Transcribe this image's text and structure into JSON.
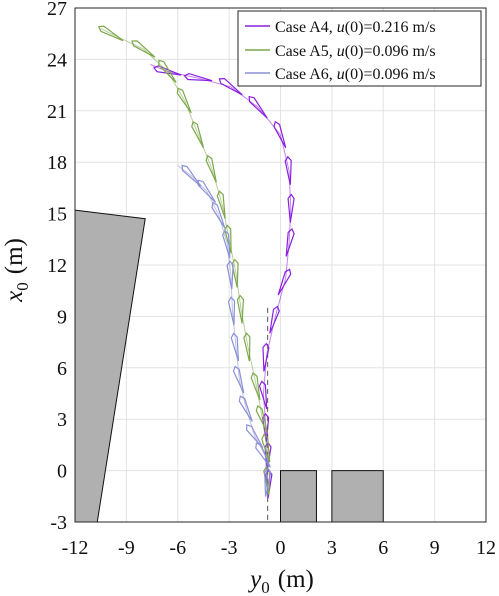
{
  "chart_data": {
    "type": "line",
    "xlabel": {
      "base": "y",
      "sub": "0",
      "unit": "(m)"
    },
    "ylabel": {
      "base": "x",
      "sub": "0",
      "unit": "(m)"
    },
    "xlim": [
      -12,
      12
    ],
    "ylim": [
      -3,
      27
    ],
    "xticks": [
      "-12",
      "-9",
      "-6",
      "-3",
      "0",
      "3",
      "6",
      "9",
      "12"
    ],
    "yticks": [
      "-3",
      "0",
      "3",
      "6",
      "9",
      "12",
      "15",
      "18",
      "21",
      "24",
      "27"
    ],
    "grid": true,
    "legend_position": "top-right",
    "legend": [
      {
        "text_before": "Case A4,  ",
        "var": "u",
        "text_after": "(0)=0.216 m/s",
        "color": "#8b1fe0"
      },
      {
        "text_before": "Case A5,  ",
        "var": "u",
        "text_after": "(0)=0.096 m/s",
        "color": "#7ca84a"
      },
      {
        "text_before": "Case A6,  ",
        "var": "u",
        "text_after": "(0)=0.096 m/s",
        "color": "#8a90d6"
      }
    ],
    "series": [
      {
        "color": "#8b1fe0",
        "frames": [
          {
            "y": -0.7,
            "x": -0.8,
            "deg": 88
          },
          {
            "y": -0.75,
            "x": 0.8,
            "deg": 88
          },
          {
            "y": -0.85,
            "x": 2.5,
            "deg": 92
          },
          {
            "y": -0.95,
            "x": 4.4,
            "deg": 100
          },
          {
            "y": -0.9,
            "x": 6.6,
            "deg": 85
          },
          {
            "y": -0.4,
            "x": 8.8,
            "deg": 74
          },
          {
            "y": 0.2,
            "x": 11.0,
            "deg": 66
          },
          {
            "y": 0.5,
            "x": 13.3,
            "deg": 78
          },
          {
            "y": 0.6,
            "x": 15.3,
            "deg": 88
          },
          {
            "y": 0.5,
            "x": 17.5,
            "deg": 95
          },
          {
            "y": 0.0,
            "x": 19.6,
            "deg": 112
          },
          {
            "y": -1.3,
            "x": 21.2,
            "deg": 130
          },
          {
            "y": -2.9,
            "x": 22.4,
            "deg": 145
          },
          {
            "y": -4.8,
            "x": 22.9,
            "deg": 170
          },
          {
            "y": -6.6,
            "x": 23.3,
            "deg": 165
          }
        ],
        "path": [
          [
            -0.75,
            -1.5
          ],
          [
            -0.75,
            0.5
          ],
          [
            -0.85,
            2.5
          ],
          [
            -1.0,
            4.5
          ],
          [
            -0.8,
            6.8
          ],
          [
            -0.3,
            9.0
          ],
          [
            0.3,
            11.2
          ],
          [
            0.5,
            13.3
          ],
          [
            0.6,
            15.3
          ],
          [
            0.5,
            17.5
          ],
          [
            0.0,
            19.6
          ],
          [
            -1.3,
            21.2
          ],
          [
            -2.9,
            22.4
          ],
          [
            -4.8,
            22.9
          ],
          [
            -6.6,
            23.3
          ],
          [
            -7.6,
            23.7
          ]
        ]
      },
      {
        "color": "#7ca84a",
        "frames": [
          {
            "y": -0.75,
            "x": -0.6,
            "deg": 95
          },
          {
            "y": -0.8,
            "x": 1.3,
            "deg": 102
          },
          {
            "y": -1.05,
            "x": 3.0,
            "deg": 110
          },
          {
            "y": -1.4,
            "x": 4.9,
            "deg": 104
          },
          {
            "y": -1.9,
            "x": 7.2,
            "deg": 96
          },
          {
            "y": -2.3,
            "x": 9.4,
            "deg": 94
          },
          {
            "y": -2.6,
            "x": 11.5,
            "deg": 95
          },
          {
            "y": -3.0,
            "x": 13.5,
            "deg": 98
          },
          {
            "y": -3.4,
            "x": 15.5,
            "deg": 102
          },
          {
            "y": -4.0,
            "x": 17.6,
            "deg": 108
          },
          {
            "y": -4.8,
            "x": 19.6,
            "deg": 112
          },
          {
            "y": -5.6,
            "x": 21.6,
            "deg": 118
          },
          {
            "y": -6.6,
            "x": 23.3,
            "deg": 128
          },
          {
            "y": -8.0,
            "x": 24.6,
            "deg": 145
          },
          {
            "y": -9.9,
            "x": 25.5,
            "deg": 150
          }
        ],
        "path": [
          [
            -0.75,
            -1.5
          ],
          [
            -0.8,
            1.3
          ],
          [
            -1.05,
            3.0
          ],
          [
            -1.4,
            4.9
          ],
          [
            -1.9,
            7.2
          ],
          [
            -2.3,
            9.4
          ],
          [
            -2.6,
            11.5
          ],
          [
            -3.0,
            13.5
          ],
          [
            -3.4,
            15.5
          ],
          [
            -4.0,
            17.6
          ],
          [
            -4.8,
            19.6
          ],
          [
            -5.6,
            21.6
          ],
          [
            -6.6,
            23.3
          ],
          [
            -8.0,
            24.6
          ],
          [
            -9.9,
            25.5
          ],
          [
            -10.5,
            25.8
          ]
        ]
      },
      {
        "color": "#8a90d6",
        "frames": [
          {
            "y": -0.8,
            "x": -0.7,
            "deg": 85
          },
          {
            "y": -1.0,
            "x": 0.9,
            "deg": 120
          },
          {
            "y": -1.5,
            "x": 2.0,
            "deg": 125
          },
          {
            "y": -2.0,
            "x": 3.6,
            "deg": 115
          },
          {
            "y": -2.4,
            "x": 5.3,
            "deg": 108
          },
          {
            "y": -2.6,
            "x": 7.2,
            "deg": 100
          },
          {
            "y": -2.8,
            "x": 9.3,
            "deg": 96
          },
          {
            "y": -2.9,
            "x": 11.4,
            "deg": 94
          },
          {
            "y": -3.1,
            "x": 13.2,
            "deg": 100
          },
          {
            "y": -3.6,
            "x": 14.9,
            "deg": 115
          },
          {
            "y": -4.3,
            "x": 16.3,
            "deg": 128
          },
          {
            "y": -5.2,
            "x": 17.2,
            "deg": 132
          }
        ],
        "path": [
          [
            -0.75,
            -1.4
          ],
          [
            -0.9,
            0.9
          ],
          [
            -1.5,
            2.0
          ],
          [
            -2.0,
            3.6
          ],
          [
            -2.4,
            5.3
          ],
          [
            -2.6,
            7.2
          ],
          [
            -2.8,
            9.3
          ],
          [
            -2.9,
            11.4
          ],
          [
            -3.1,
            13.2
          ],
          [
            -3.6,
            14.9
          ],
          [
            -4.3,
            16.3
          ],
          [
            -5.2,
            17.2
          ],
          [
            -6.0,
            17.8
          ]
        ]
      }
    ],
    "obstacles": [
      {
        "color": "#b0b0b0",
        "points": [
          [
            -12,
            15.2
          ],
          [
            -7.9,
            14.7
          ],
          [
            -10.7,
            -3
          ],
          [
            -12,
            -3
          ]
        ]
      },
      {
        "color": "#b0b0b0",
        "points": [
          [
            0,
            0
          ],
          [
            2.1,
            0
          ],
          [
            2.1,
            -3
          ],
          [
            0,
            -3
          ]
        ]
      },
      {
        "color": "#b0b0b0",
        "points": [
          [
            3.0,
            0
          ],
          [
            6.0,
            0
          ],
          [
            6.0,
            -3
          ],
          [
            3.0,
            -3
          ]
        ]
      }
    ],
    "reference_line": {
      "y": -0.75,
      "x_from": 9.5,
      "x_to": -3,
      "style": "dashed"
    }
  }
}
